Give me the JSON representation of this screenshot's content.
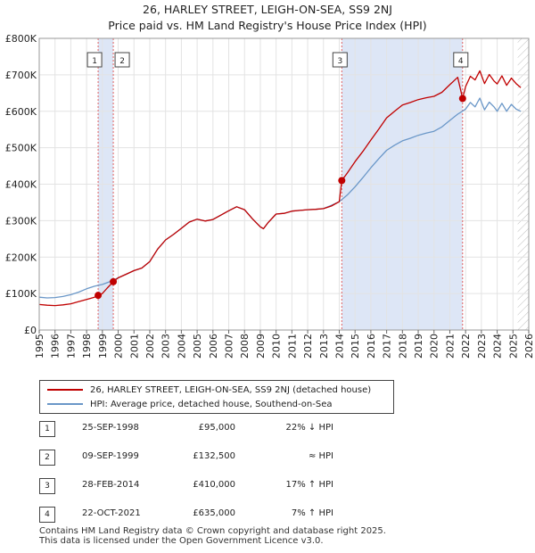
{
  "title_line1": "26, HARLEY STREET, LEIGH-ON-SEA, SS9 2NJ",
  "title_line2": "Price paid vs. HM Land Registry's House Price Index (HPI)",
  "colors": {
    "property": "#c00000",
    "hpi": "#6a97c8",
    "shade": "#dde6f6"
  },
  "chart_data": {
    "type": "line",
    "title": "26, HARLEY STREET, LEIGH-ON-SEA, SS9 2NJ — Price paid vs. HM Land Registry's House Price Index (HPI)",
    "xlabel": "",
    "ylabel": "",
    "xlim": [
      1995,
      2026
    ],
    "ylim": [
      0,
      800000
    ],
    "x_ticks": [
      "1995",
      "1996",
      "1997",
      "1998",
      "1999",
      "2000",
      "2001",
      "2002",
      "2003",
      "2004",
      "2005",
      "2006",
      "2007",
      "2008",
      "2009",
      "2010",
      "2011",
      "2012",
      "2013",
      "2014",
      "2015",
      "2016",
      "2017",
      "2018",
      "2019",
      "2020",
      "2021",
      "2022",
      "2023",
      "2024",
      "2025",
      "2026"
    ],
    "y_ticks": [
      {
        "value": 0,
        "label": "£0"
      },
      {
        "value": 100000,
        "label": "£100K"
      },
      {
        "value": 200000,
        "label": "£200K"
      },
      {
        "value": 300000,
        "label": "£300K"
      },
      {
        "value": 400000,
        "label": "£400K"
      },
      {
        "value": 500000,
        "label": "£500K"
      },
      {
        "value": 600000,
        "label": "£600K"
      },
      {
        "value": 700000,
        "label": "£700K"
      },
      {
        "value": 800000,
        "label": "£800K"
      }
    ],
    "series": [
      {
        "name": "26, HARLEY STREET, LEIGH-ON-SEA, SS9 2NJ (detached house)",
        "x": [
          1995.0,
          1995.5,
          1996.0,
          1996.5,
          1997.0,
          1997.5,
          1998.0,
          1998.5,
          1998.73,
          1999.0,
          1999.3,
          1999.69,
          2000.0,
          2000.5,
          2001.0,
          2001.5,
          2002.0,
          2002.5,
          2003.0,
          2003.5,
          2004.0,
          2004.5,
          2005.0,
          2005.5,
          2006.0,
          2006.5,
          2007.0,
          2007.5,
          2008.0,
          2008.5,
          2009.0,
          2009.2,
          2009.5,
          2010.0,
          2010.5,
          2011.0,
          2011.5,
          2012.0,
          2012.5,
          2013.0,
          2013.5,
          2014.0,
          2014.16,
          2014.5,
          2015.0,
          2015.5,
          2016.0,
          2016.5,
          2017.0,
          2017.5,
          2018.0,
          2018.5,
          2019.0,
          2019.5,
          2020.0,
          2020.5,
          2021.0,
          2021.5,
          2021.81,
          2022.0,
          2022.3,
          2022.6,
          2022.9,
          2023.2,
          2023.5,
          2023.8,
          2024.0,
          2024.3,
          2024.6,
          2024.9,
          2025.2,
          2025.5
        ],
        "values": [
          70000,
          68000,
          67000,
          69000,
          72000,
          78000,
          84000,
          90000,
          95000,
          100000,
          115000,
          132500,
          143000,
          153000,
          163000,
          170000,
          188000,
          222000,
          247000,
          262000,
          279000,
          296000,
          304000,
          299000,
          303000,
          315000,
          327000,
          338000,
          330000,
          305000,
          283000,
          278000,
          295000,
          318000,
          320000,
          326000,
          328000,
          330000,
          331000,
          333000,
          340000,
          352000,
          410000,
          430000,
          462000,
          490000,
          521000,
          551000,
          582000,
          600000,
          617000,
          624000,
          632000,
          637000,
          641000,
          652000,
          673000,
          693000,
          635000,
          668000,
          696000,
          686000,
          711000,
          676000,
          701000,
          683000,
          675000,
          697000,
          671000,
          691000,
          676000,
          665000
        ]
      },
      {
        "name": "HPI: Average price, detached house, Southend-on-Sea",
        "x": [
          1995.0,
          1995.5,
          1996.0,
          1996.5,
          1997.0,
          1997.5,
          1998.0,
          1998.5,
          1999.0,
          1999.5,
          2000.0,
          2000.5,
          2001.0,
          2001.5,
          2002.0,
          2002.5,
          2003.0,
          2003.5,
          2004.0,
          2004.5,
          2005.0,
          2005.5,
          2006.0,
          2006.5,
          2007.0,
          2007.5,
          2008.0,
          2008.5,
          2009.0,
          2009.2,
          2009.5,
          2010.0,
          2010.5,
          2011.0,
          2011.5,
          2012.0,
          2012.5,
          2013.0,
          2013.5,
          2014.0,
          2014.5,
          2015.0,
          2015.5,
          2016.0,
          2016.5,
          2017.0,
          2017.5,
          2018.0,
          2018.5,
          2019.0,
          2019.5,
          2020.0,
          2020.5,
          2021.0,
          2021.5,
          2022.0,
          2022.3,
          2022.6,
          2022.9,
          2023.2,
          2023.5,
          2023.8,
          2024.0,
          2024.3,
          2024.6,
          2024.9,
          2025.2,
          2025.5
        ],
        "values": [
          90000,
          88000,
          89000,
          92000,
          97000,
          104000,
          113000,
          120000,
          125000,
          133000,
          143000,
          153000,
          163000,
          170000,
          188000,
          222000,
          247000,
          262000,
          279000,
          296000,
          304000,
          299000,
          303000,
          315000,
          327000,
          338000,
          330000,
          305000,
          283000,
          278000,
          295000,
          318000,
          320000,
          326000,
          328000,
          330000,
          331000,
          333000,
          342000,
          352000,
          370000,
          393000,
          418000,
          445000,
          470000,
          493000,
          507000,
          519000,
          526000,
          534000,
          540000,
          545000,
          557000,
          575000,
          592000,
          606000,
          624000,
          612000,
          636000,
          604000,
          625000,
          612000,
          600000,
          622000,
          600000,
          619000,
          606000,
          600000
        ]
      }
    ],
    "sales": [
      {
        "label": "1",
        "x": 1998.73,
        "value": 95000
      },
      {
        "label": "2",
        "x": 1999.69,
        "value": 132500
      },
      {
        "label": "3",
        "x": 2014.16,
        "value": 410000
      },
      {
        "label": "4",
        "x": 2021.81,
        "value": 635000
      }
    ],
    "hpi_shaded_periods": [
      [
        1998.73,
        1999.69
      ],
      [
        2014.16,
        2021.81
      ]
    ],
    "forecast_start": 2025.3
  },
  "legend": {
    "property": "26, HARLEY STREET, LEIGH-ON-SEA, SS9 2NJ (detached house)",
    "hpi": "HPI: Average price, detached house, Southend-on-Sea"
  },
  "sales_table": [
    {
      "num": "1",
      "date": "25-SEP-1998",
      "price": "£95,000",
      "hpi": "22% ↓ HPI"
    },
    {
      "num": "2",
      "date": "09-SEP-1999",
      "price": "£132,500",
      "hpi": "≈ HPI"
    },
    {
      "num": "3",
      "date": "28-FEB-2014",
      "price": "£410,000",
      "hpi": "17% ↑ HPI"
    },
    {
      "num": "4",
      "date": "22-OCT-2021",
      "price": "£635,000",
      "hpi": "7% ↑ HPI"
    }
  ],
  "footer": {
    "line1": "Contains HM Land Registry data © Crown copyright and database right 2025.",
    "line2": "This data is licensed under the Open Government Licence v3.0."
  }
}
